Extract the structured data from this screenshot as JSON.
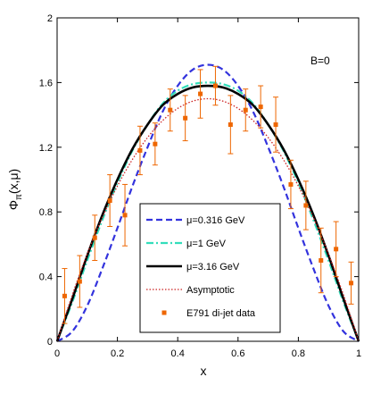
{
  "chart_data": {
    "type": "line",
    "annotation": "B=0",
    "xlabel": "x",
    "ylabel_main": "Φ",
    "ylabel_sub": "π",
    "ylabel_args": "(x,μ)",
    "xlim": [
      0,
      1
    ],
    "ylim": [
      0,
      2
    ],
    "x_ticks": [
      0,
      0.2,
      0.4,
      0.6,
      0.8,
      1
    ],
    "x_tick_labels": [
      "0",
      "0.2",
      "0.4",
      "0.6",
      "0.8",
      "1"
    ],
    "y_ticks": [
      0,
      0.4,
      0.8,
      1.2,
      1.6,
      2
    ],
    "y_tick_labels": [
      "0",
      "0.4",
      "0.8",
      "1.2",
      "1.6",
      "2"
    ],
    "grid": false,
    "legend_position": "bottom-center",
    "series": [
      {
        "name": "μ=0.316 GeV",
        "color": "#3333dd",
        "style": "dashed",
        "x": [
          0,
          0.05,
          0.1,
          0.15,
          0.2,
          0.25,
          0.3,
          0.35,
          0.4,
          0.45,
          0.5,
          0.55,
          0.6,
          0.65,
          0.7,
          0.75,
          0.8,
          0.85,
          0.9,
          0.95,
          1
        ],
        "y": [
          0,
          0.06,
          0.22,
          0.45,
          0.7,
          0.96,
          1.2,
          1.42,
          1.58,
          1.68,
          1.71,
          1.68,
          1.58,
          1.42,
          1.2,
          0.96,
          0.7,
          0.45,
          0.22,
          0.06,
          0
        ]
      },
      {
        "name": "μ=1 GeV",
        "color": "#33ddbb",
        "style": "dashdot",
        "x": [
          0,
          0.05,
          0.1,
          0.15,
          0.2,
          0.25,
          0.3,
          0.35,
          0.4,
          0.45,
          0.5,
          0.55,
          0.6,
          0.65,
          0.7,
          0.75,
          0.8,
          0.85,
          0.9,
          0.95,
          1
        ],
        "y": [
          0,
          0.24,
          0.5,
          0.75,
          0.98,
          1.18,
          1.34,
          1.47,
          1.55,
          1.59,
          1.6,
          1.59,
          1.55,
          1.47,
          1.34,
          1.18,
          0.98,
          0.75,
          0.5,
          0.24,
          0
        ]
      },
      {
        "name": "μ=3.16 GeV",
        "color": "#000000",
        "style": "solid",
        "x": [
          0,
          0.05,
          0.1,
          0.15,
          0.2,
          0.25,
          0.3,
          0.35,
          0.4,
          0.45,
          0.5,
          0.55,
          0.6,
          0.65,
          0.7,
          0.75,
          0.8,
          0.85,
          0.9,
          0.95,
          1
        ],
        "y": [
          0,
          0.26,
          0.53,
          0.78,
          1.0,
          1.19,
          1.34,
          1.46,
          1.53,
          1.57,
          1.58,
          1.57,
          1.53,
          1.46,
          1.34,
          1.19,
          1.0,
          0.78,
          0.53,
          0.26,
          0
        ]
      },
      {
        "name": "Asymptotic",
        "color": "#cc2222",
        "style": "dotted",
        "x": [
          0,
          0.05,
          0.1,
          0.15,
          0.2,
          0.25,
          0.3,
          0.35,
          0.4,
          0.45,
          0.5,
          0.55,
          0.6,
          0.65,
          0.7,
          0.75,
          0.8,
          0.85,
          0.9,
          0.95,
          1
        ],
        "y": [
          0,
          0.285,
          0.54,
          0.765,
          0.96,
          1.125,
          1.26,
          1.365,
          1.44,
          1.485,
          1.5,
          1.485,
          1.44,
          1.365,
          1.26,
          1.125,
          0.96,
          0.765,
          0.54,
          0.285,
          0
        ]
      }
    ],
    "data_points": {
      "name": "E791 di-jet data",
      "color": "#ee6600",
      "x": [
        0.025,
        0.075,
        0.125,
        0.175,
        0.225,
        0.275,
        0.325,
        0.375,
        0.425,
        0.475,
        0.525,
        0.575,
        0.625,
        0.675,
        0.725,
        0.775,
        0.825,
        0.875,
        0.925,
        0.975
      ],
      "y": [
        0.28,
        0.37,
        0.64,
        0.87,
        0.78,
        1.18,
        1.22,
        1.43,
        1.38,
        1.53,
        1.58,
        1.34,
        1.43,
        1.45,
        1.34,
        0.97,
        0.84,
        0.5,
        0.57,
        0.36
      ],
      "err": [
        0.17,
        0.16,
        0.14,
        0.16,
        0.19,
        0.15,
        0.13,
        0.13,
        0.14,
        0.15,
        0.12,
        0.18,
        0.13,
        0.13,
        0.17,
        0.15,
        0.15,
        0.2,
        0.17,
        0.13
      ]
    }
  }
}
